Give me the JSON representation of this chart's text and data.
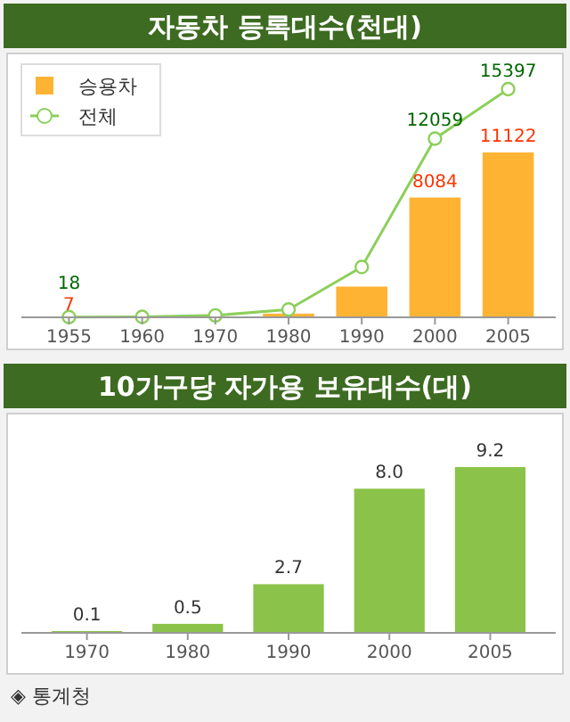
{
  "chart_data": [
    {
      "type": "bar",
      "title": "자동차 등록대수(천대)",
      "categories": [
        "1955",
        "1960",
        "1970",
        "1980",
        "1990",
        "2000",
        "2005"
      ],
      "legend": "top left",
      "marker": "circle",
      "series": [
        {
          "name": "승용차",
          "type": "bar",
          "color": "#ffb333",
          "values": [
            7,
            10,
            61,
            249,
            2075,
            8084,
            11122
          ],
          "value_labels": [
            "7",
            null,
            null,
            null,
            null,
            "8084",
            "11122"
          ]
        },
        {
          "name": "전체",
          "type": "line",
          "color": "#8ccf5a",
          "values": [
            18,
            31,
            129,
            528,
            3395,
            12059,
            15397
          ],
          "value_labels": [
            "18",
            null,
            null,
            null,
            null,
            "12059",
            "15397"
          ]
        }
      ]
    },
    {
      "type": "bar",
      "title": "10가구당 자가용 보유대수(대)",
      "categories": [
        "1970",
        "1980",
        "1990",
        "2000",
        "2005"
      ],
      "values": [
        0.1,
        0.5,
        2.7,
        8.0,
        9.2
      ],
      "value_labels": [
        "0.1",
        "0.5",
        "2.7",
        "8.0",
        "9.2"
      ],
      "color": "#8bc34a",
      "annotations": [
        "◈ 통계청"
      ]
    }
  ]
}
